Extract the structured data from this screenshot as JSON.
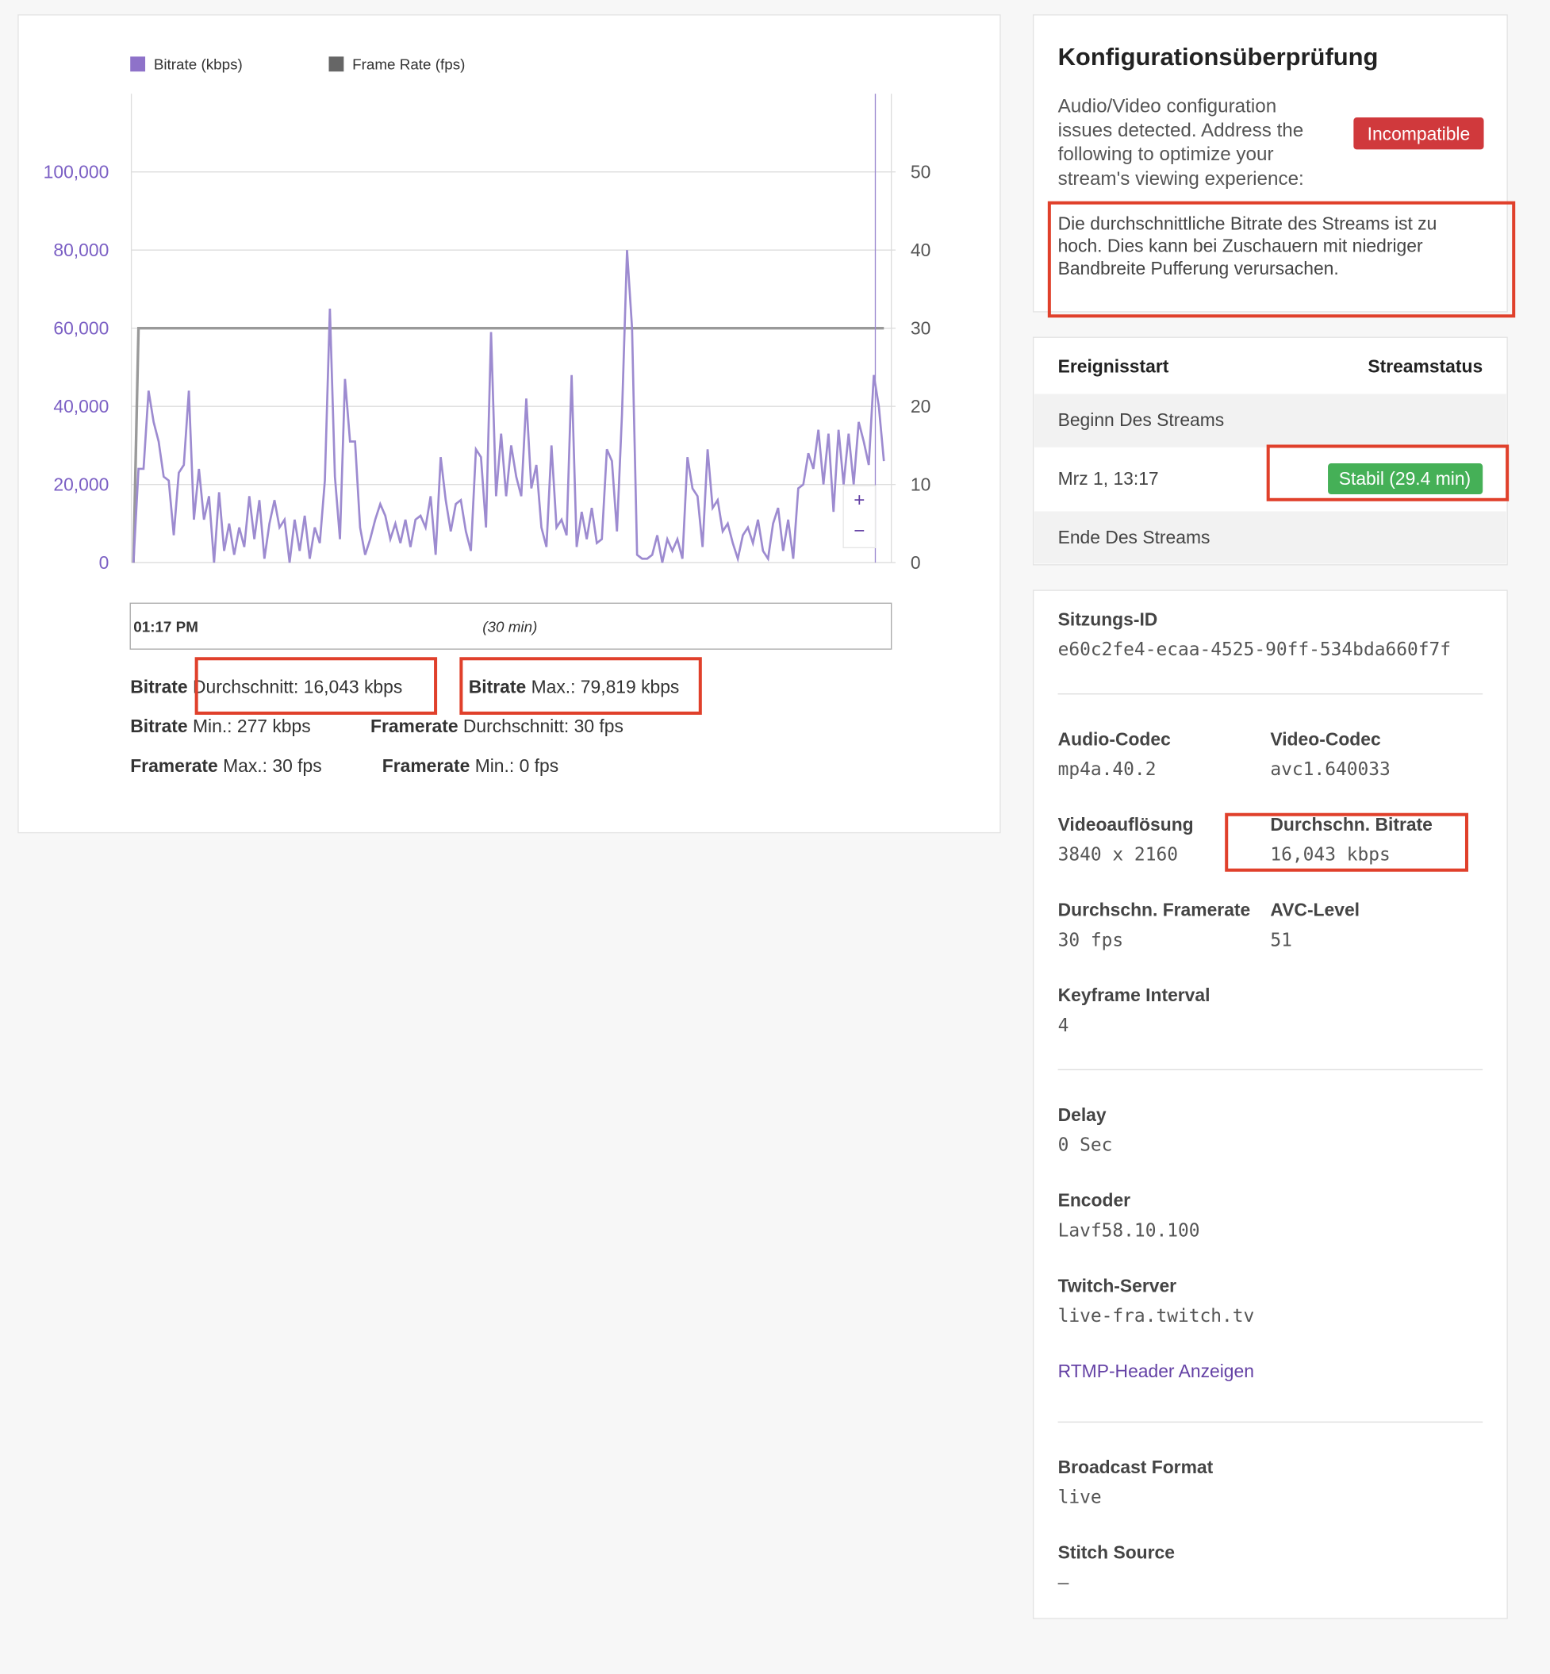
{
  "chart_data": {
    "type": "line",
    "series": [
      {
        "name": "Bitrate (kbps)",
        "color": "#9d8bd0",
        "legend_color": "#8e72c9",
        "axis": "y",
        "values": [
          0,
          24000,
          24000,
          44000,
          36000,
          31000,
          22000,
          21000,
          7000,
          23000,
          25000,
          44000,
          11000,
          24000,
          11000,
          17000,
          0,
          18000,
          3000,
          10000,
          2000,
          9000,
          4000,
          17000,
          6000,
          16000,
          1000,
          10000,
          16000,
          9000,
          11000,
          0,
          11000,
          3000,
          12000,
          1000,
          9000,
          5000,
          21000,
          65000,
          22000,
          6000,
          47000,
          31000,
          31000,
          9000,
          2000,
          6000,
          11000,
          15000,
          12000,
          6000,
          10000,
          5000,
          11000,
          4000,
          11000,
          12000,
          9000,
          17000,
          2000,
          27000,
          16000,
          8000,
          15000,
          16000,
          8000,
          3000,
          29000,
          27000,
          9000,
          59000,
          17000,
          33000,
          17000,
          30000,
          22000,
          17000,
          42000,
          19000,
          25000,
          9000,
          4000,
          30000,
          9000,
          11000,
          7000,
          48000,
          4000,
          13000,
          6000,
          14000,
          5000,
          6000,
          29000,
          26000,
          8000,
          38000,
          80000,
          60000,
          2000,
          1000,
          1000,
          2000,
          7000,
          0,
          6000,
          3000,
          6000,
          1000,
          27000,
          19000,
          17000,
          4000,
          29000,
          14000,
          16000,
          8000,
          10000,
          5000,
          1000,
          7000,
          9000,
          5000,
          11000,
          3000,
          1000,
          10000,
          14000,
          3000,
          11000,
          1000,
          19000,
          20000,
          28000,
          24000,
          34000,
          20000,
          33000,
          13000,
          34000,
          20000,
          33000,
          20000,
          36000,
          31000,
          25000,
          48000,
          40000,
          26000
        ]
      },
      {
        "name": "Frame Rate (fps)",
        "color": "#999999",
        "legend_color": "#666666",
        "axis": "y2",
        "values": [
          0,
          30,
          30,
          30,
          30,
          30,
          30,
          30,
          30,
          30,
          30,
          30,
          30,
          30,
          30,
          30,
          30,
          30,
          30,
          30,
          30,
          30,
          30,
          30,
          30,
          30,
          30,
          30,
          30,
          30,
          30,
          30,
          30,
          30,
          30,
          30,
          30,
          30,
          30,
          30,
          30,
          30,
          30,
          30,
          30,
          30,
          30,
          30,
          30,
          30,
          30,
          30,
          30,
          30,
          30,
          30,
          30,
          30,
          30,
          30,
          30,
          30,
          30,
          30,
          30,
          30,
          30,
          30,
          30,
          30,
          30,
          30,
          30,
          30,
          30,
          30,
          30,
          30,
          30,
          30,
          30,
          30,
          30,
          30,
          30,
          30,
          30,
          30,
          30,
          30,
          30,
          30,
          30,
          30,
          30,
          30,
          30,
          30,
          30,
          30,
          30,
          30,
          30,
          30,
          30,
          30,
          30,
          30,
          30,
          30,
          30,
          30,
          30,
          30,
          30,
          30,
          30,
          30,
          30,
          30,
          30,
          30,
          30,
          30,
          30,
          30,
          30,
          30,
          30,
          30,
          30,
          30,
          30,
          30,
          30,
          30,
          30,
          30,
          30,
          30,
          30,
          30,
          30,
          30,
          30,
          30,
          30,
          30,
          30,
          30
        ]
      }
    ],
    "ylim": [
      0,
      120000
    ],
    "yticks": [
      0,
      {
        "value": 20000,
        "label": "20,000"
      },
      {
        "value": 40000,
        "label": "40,000"
      },
      {
        "value": 60000,
        "label": "60,000"
      },
      {
        "value": 80000,
        "label": "80,000"
      },
      {
        "value": 100000,
        "label": "100,000"
      }
    ],
    "y2lim": [
      0,
      60
    ],
    "y2ticks": [
      0,
      10,
      20,
      30,
      40,
      50
    ],
    "grid": true,
    "legend": "top",
    "timeline": {
      "start": "01:17 PM",
      "duration": "(30 min)"
    }
  },
  "stats": [
    {
      "label": "Bitrate",
      "value": "Durchschnitt: 16,043 kbps"
    },
    {
      "label": "Bitrate",
      "value": "Max.: 79,819 kbps"
    },
    {
      "label": "Bitrate",
      "value": "Min.: 277 kbps"
    },
    {
      "label": "Framerate",
      "value": "Durchschnitt: 30 fps"
    },
    {
      "label": "Framerate",
      "value": "Max.: 30 fps"
    },
    {
      "label": "Framerate",
      "value": "Min.: 0 fps"
    }
  ],
  "config": {
    "title": "Konfigurationsüberprüfung",
    "description": [
      "Audio/Video configuration",
      "issues detected. Address the",
      "following to optimize your",
      "stream's viewing experience:"
    ],
    "badge": "Incompatible",
    "warning": [
      "Die durchschnittliche Bitrate des Streams ist zu",
      "hoch. Dies kann bei Zuschauern mit niedriger",
      "Bandbreite Pufferung verursachen."
    ]
  },
  "events": {
    "headers": [
      "Ereignisstart",
      "Streamstatus"
    ],
    "start": "Beginn Des Streams",
    "time": "Mrz 1, 13:17",
    "status": "Stabil (29.4 min)",
    "end": "Ende Des Streams"
  },
  "details": {
    "session": {
      "label": "Sitzungs-ID",
      "value": "e60c2fe4-ecaa-4525-90ff-534bda660f7f"
    },
    "fields": [
      {
        "label": "Audio-Codec",
        "value": "mp4a.40.2"
      },
      {
        "label": "Video-Codec",
        "value": "avc1.640033"
      },
      {
        "label": "Videoauflösung",
        "value": "3840 x 2160"
      },
      {
        "label": "Durchschn. Bitrate",
        "value": "16,043 kbps"
      },
      {
        "label": "Durchschn. Framerate",
        "value": "30 fps"
      },
      {
        "label": "AVC-Level",
        "value": "51"
      },
      {
        "label": "Keyframe Interval",
        "value": "4"
      },
      {
        "label": "Delay",
        "value": "0 Sec"
      },
      {
        "label": "Encoder",
        "value": "Lavf58.10.100"
      },
      {
        "label": "Twitch-Server",
        "value": "live-fra.twitch.tv"
      },
      {
        "label": "Broadcast Format",
        "value": "live"
      },
      {
        "label": "Stitch Source",
        "value": "–"
      }
    ],
    "link": "RTMP-Header Anzeigen"
  }
}
